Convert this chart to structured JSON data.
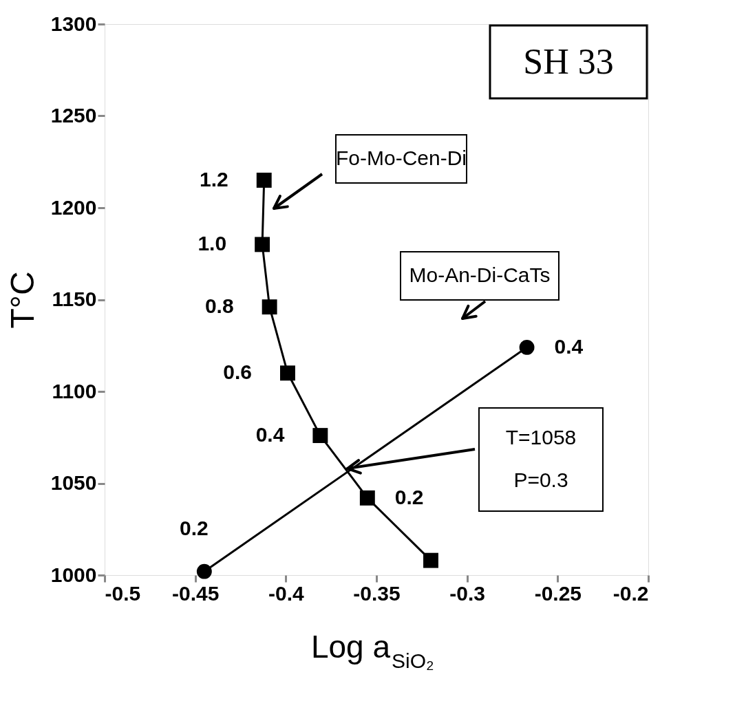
{
  "chart_data": {
    "type": "line",
    "xlabel": "Log a$_{SiO₂}$",
    "ylabel": "T°C",
    "xlim": [
      -0.5,
      -0.2
    ],
    "xticks": [
      -0.5,
      -0.45,
      -0.4,
      -0.35,
      -0.3,
      -0.25,
      -0.2
    ],
    "ylim": [
      1000,
      1300
    ],
    "yticks": [
      1000,
      1050,
      1100,
      1150,
      1200,
      1250,
      1300
    ],
    "grid": false,
    "line_style": "solid",
    "series": [
      {
        "color": "#000000",
        "marker": "square",
        "x": [
          -0.412,
          -0.413,
          -0.409,
          -0.399,
          -0.381,
          -0.355,
          -0.32
        ],
        "values": [
          1215,
          1180,
          1146,
          1110,
          1076,
          1042,
          1008
        ]
      },
      {
        "color": "#000000",
        "marker": "circle",
        "x": [
          -0.445,
          -0.267
        ],
        "values": [
          1002,
          1124
        ]
      }
    ],
    "annotations": [
      "SH 33",
      "Fo-Mo-Cen-Di",
      "Mo-An-Di-CaTs",
      "T=1058\nP=0.3",
      {
        "text": "1.2",
        "x": -0.412,
        "y": 1215
      },
      {
        "text": "1.0",
        "x": -0.413,
        "y": 1180
      },
      {
        "text": "0.8",
        "x": -0.409,
        "y": 1146
      },
      {
        "text": "0.6",
        "x": -0.399,
        "y": 1110
      },
      {
        "text": "0.4",
        "x": -0.381,
        "y": 1076
      },
      {
        "text": "0.2",
        "x": -0.355,
        "y": 1042
      },
      {
        "text": "0.2",
        "x": -0.445,
        "y": 1002
      },
      {
        "text": "0.4",
        "x": -0.267,
        "y": 1124
      }
    ]
  }
}
